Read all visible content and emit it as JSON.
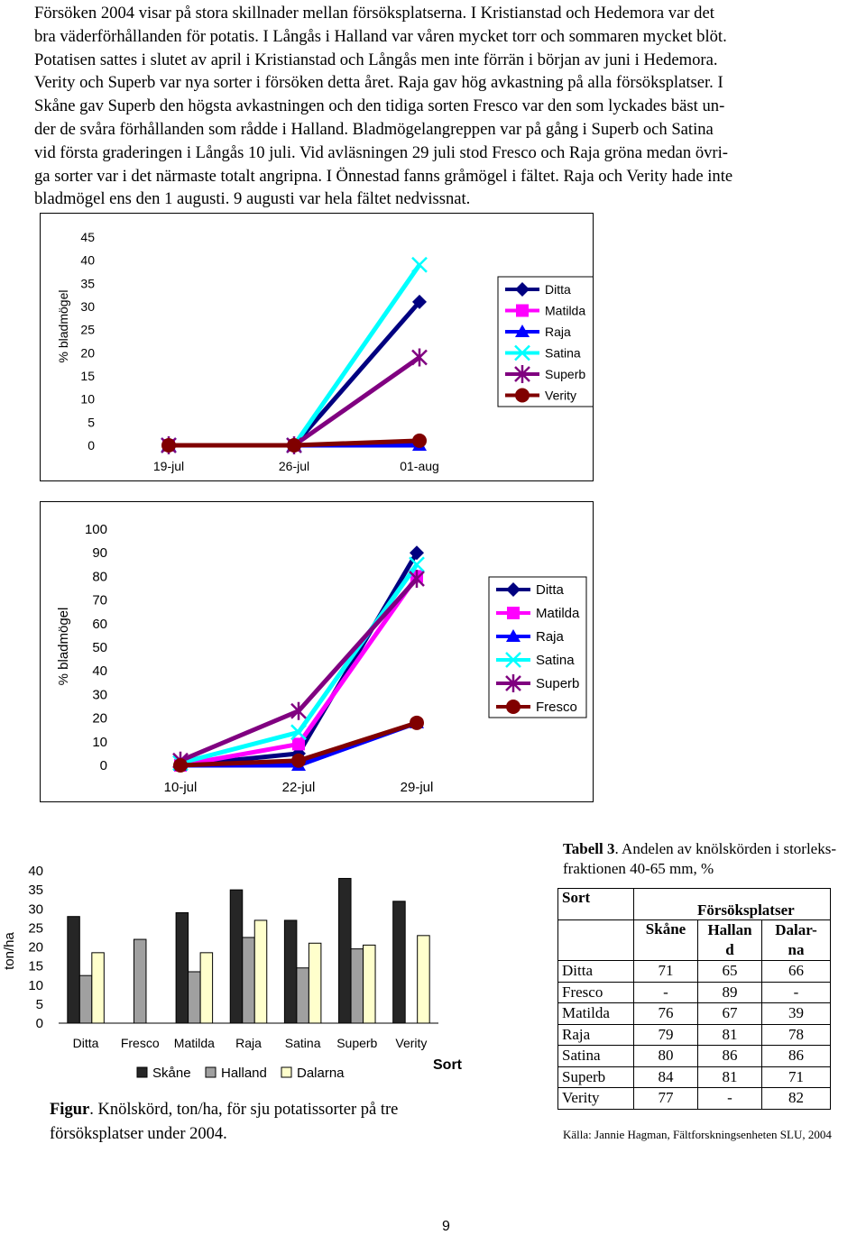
{
  "paragraph": [
    "Försöken 2004 visar på stora skillnader mellan försöksplatserna. I Kristianstad och Hedemora var det",
    "bra väderförhållanden för potatis. I Långås i Halland var våren mycket torr och sommaren mycket blöt.",
    "Potatisen sattes i slutet av april i Kristianstad och Långås men inte förrän i början av juni i Hedemora.",
    "Verity och Superb var nya sorter i försöken detta året. Raja gav hög avkastning på alla försöksplatser. I",
    "Skåne gav Superb den högsta avkastningen och den tidiga sorten Fresco var den som lyckades bäst un-",
    "der de svåra förhållanden som rådde i Halland. Bladmögelangreppen var på gång i Superb och Satina",
    "vid första graderingen i Långås 10 juli. Vid avläsningen 29 juli stod Fresco och Raja gröna medan övri-",
    "ga sorter var i det närmaste totalt angripna. I Önnestad fanns gråmögel i fältet. Raja och Verity hade inte",
    "bladmögel ens den 1 augusti. 9 augusti var hela fältet nedvissnat."
  ],
  "chart_data": [
    {
      "type": "line",
      "ylabel": "% bladmögel",
      "categories": [
        "19-jul",
        "26-jul",
        "01-aug"
      ],
      "ylim": [
        0,
        45
      ],
      "yticks": [
        0,
        5,
        10,
        15,
        20,
        25,
        30,
        35,
        40,
        45
      ],
      "series": [
        {
          "name": "Ditta",
          "values": [
            0,
            0,
            31
          ],
          "color": "#000080",
          "marker": "diamond"
        },
        {
          "name": "Matilda",
          "values": [
            0,
            0,
            null
          ],
          "color": "#FF00FF",
          "marker": "square"
        },
        {
          "name": "Raja",
          "values": [
            0,
            0,
            0
          ],
          "color": "#0000FF",
          "marker": "triangle"
        },
        {
          "name": "Satina",
          "values": [
            0,
            0,
            39
          ],
          "color": "#00FFFF",
          "marker": "x"
        },
        {
          "name": "Superb",
          "values": [
            0,
            0,
            19
          ],
          "color": "#800080",
          "marker": "star"
        },
        {
          "name": "Verity",
          "values": [
            0,
            0,
            1
          ],
          "color": "#800000",
          "marker": "circle"
        }
      ]
    },
    {
      "type": "line",
      "ylabel": "% bladmögel",
      "categories": [
        "10-jul",
        "22-jul",
        "29-jul"
      ],
      "ylim": [
        0,
        100
      ],
      "yticks": [
        0,
        10,
        20,
        30,
        40,
        50,
        60,
        70,
        80,
        90,
        100
      ],
      "series": [
        {
          "name": "Ditta",
          "values": [
            0,
            5,
            90
          ],
          "color": "#000080",
          "marker": "diamond"
        },
        {
          "name": "Matilda",
          "values": [
            0,
            9,
            80
          ],
          "color": "#FF00FF",
          "marker": "square"
        },
        {
          "name": "Raja",
          "values": [
            0,
            0,
            18
          ],
          "color": "#0000FF",
          "marker": "triangle"
        },
        {
          "name": "Satina",
          "values": [
            1,
            14,
            85
          ],
          "color": "#00FFFF",
          "marker": "x"
        },
        {
          "name": "Superb",
          "values": [
            2,
            23,
            79
          ],
          "color": "#800080",
          "marker": "star"
        },
        {
          "name": "Fresco",
          "values": [
            0,
            2,
            18
          ],
          "color": "#800000",
          "marker": "circle"
        }
      ]
    },
    {
      "type": "bar",
      "ylabel": "ton/ha",
      "xlabel": "Sort",
      "categories": [
        "Ditta",
        "Fresco",
        "Matilda",
        "Raja",
        "Satina",
        "Superb",
        "Verity"
      ],
      "ylim": [
        0,
        40
      ],
      "yticks": [
        0,
        5,
        10,
        15,
        20,
        25,
        30,
        35,
        40
      ],
      "series": [
        {
          "name": "Skåne",
          "values": [
            28,
            null,
            29,
            35,
            27,
            38,
            32
          ],
          "color": "#262626"
        },
        {
          "name": "Halland",
          "values": [
            12.5,
            22,
            13.5,
            22.5,
            14.5,
            19.5,
            null
          ],
          "color": "#A0A0A0"
        },
        {
          "name": "Dalarna",
          "values": [
            18.5,
            null,
            18.5,
            27,
            21,
            20.5,
            23
          ],
          "color": "#FFFFCC"
        }
      ]
    }
  ],
  "figure_caption_label": "Figur",
  "figure_caption_text": ". Knölskörd, ton/ha, för sju potatissorter på tre försöksplatser under 2004.",
  "table3": {
    "title_bold": "Tabell 3",
    "title_rest": ". Andelen av knölskörden i storleks-fraktionen 40-65 mm, %",
    "col_sort": "Sort",
    "col_group": "Försöksplatser",
    "col_skane": "Skåne",
    "col_halland": "Hallan d",
    "col_dalarna": "Dalar- na",
    "rows": [
      [
        "Ditta",
        "71",
        "65",
        "66"
      ],
      [
        "Fresco",
        "-",
        "89",
        "-"
      ],
      [
        "Matilda",
        "76",
        "67",
        "39"
      ],
      [
        "Raja",
        "79",
        "81",
        "78"
      ],
      [
        "Satina",
        "80",
        "86",
        "86"
      ],
      [
        "Superb",
        "84",
        "81",
        "71"
      ],
      [
        "Verity",
        "77",
        "-",
        "82"
      ]
    ],
    "source": "Källa: Jannie Hagman, Fältforskningsenheten SLU, 2004"
  },
  "page_number": "9"
}
